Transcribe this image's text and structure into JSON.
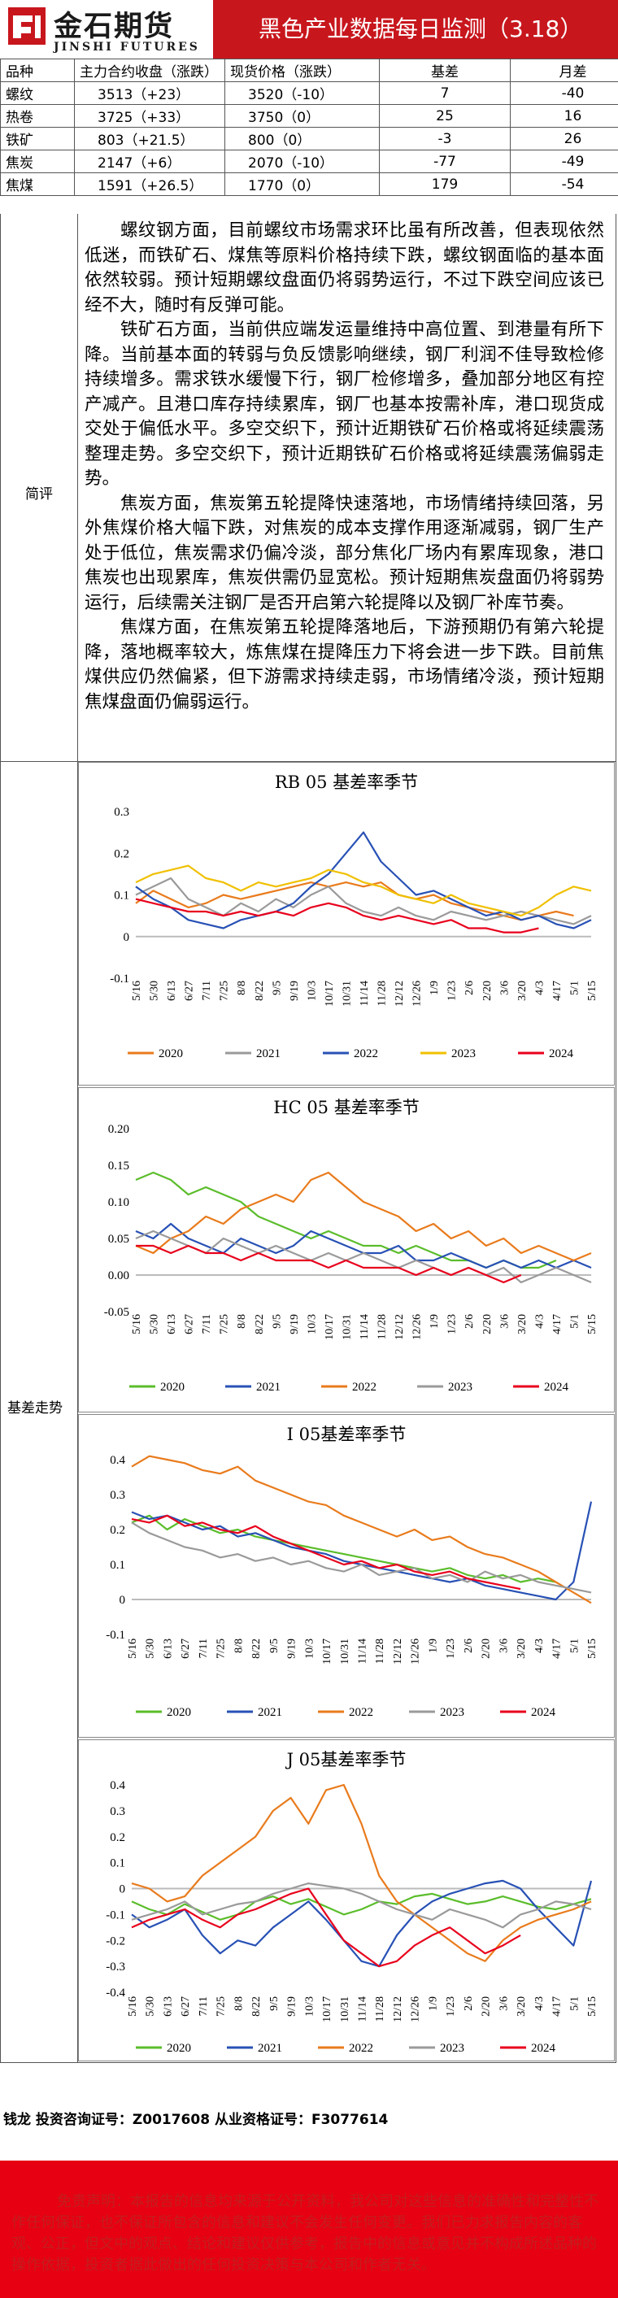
{
  "header": {
    "logo_cn": "金石期货",
    "logo_en": "JINSHI FUTURES",
    "title": "黑色产业数据每日监测（3.18）"
  },
  "table": {
    "headers": [
      "品种",
      "主力合约收盘（涨跌）",
      "现货价格（涨跌）",
      "基差",
      "月差"
    ],
    "rows": [
      [
        "螺纹",
        "3513（+23）",
        "3520（-10）",
        "7",
        "-40"
      ],
      [
        "热卷",
        "3725（+33）",
        "3750（0）",
        "25",
        "16"
      ],
      [
        "铁矿",
        "803（+21.5）",
        "800（0）",
        "-3",
        "26"
      ],
      [
        "焦炭",
        "2147（+6）",
        "2070（-10）",
        "-77",
        "-49"
      ],
      [
        "焦煤",
        "1591（+26.5）",
        "1770（0）",
        "179",
        "-54"
      ]
    ]
  },
  "commentary": {
    "label": "简评",
    "paragraphs": [
      "螺纹钢方面，目前螺纹市场需求环比虽有所改善，但表现依然低迷，而铁矿石、煤焦等原料价格持续下跌，螺纹钢面临的基本面依然较弱。预计短期螺纹盘面仍将弱势运行，不过下跌空间应该已经不大，随时有反弹可能。",
      "铁矿石方面，当前供应端发运量维持中高位置、到港量有所下降。当前基本面的转弱与负反馈影响继续，钢厂利润不佳导致检修持续增多。需求铁水缓慢下行，钢厂检修增多，叠加部分地区有控产减产。且港口库存持续累库，钢厂也基本按需补库，港口现货成交处于偏低水平。多空交织下，预计近期铁矿石价格或将延续震荡整理走势。多空交织下，预计近期铁矿石价格或将延续震荡偏弱走势。",
      "焦炭方面，焦炭第五轮提降快速落地，市场情绪持续回落，另外焦煤价格大幅下跌，对焦炭的成本支撑作用逐渐减弱，钢厂生产处于低位，焦炭需求仍偏冷淡，部分焦化厂场内有累库现象，港口焦炭也出现累库，焦炭供需仍显宽松。预计短期焦炭盘面仍将弱势运行，后续需关注钢厂是否开启第六轮提降以及钢厂补库节奏。",
      "焦煤方面，在焦炭第五轮提降落地后，下游预期仍有第六轮提降，落地概率较大，炼焦煤在提降压力下将会进一步下跌。目前焦煤供应仍然偏紧，但下游需求持续走弱，市场情绪冷淡，预计短期焦煤盘面仍偏弱运行。"
    ]
  },
  "chart_section_label": "基差走势",
  "charts": {
    "rb": {
      "title": "RB 05 基差率季节",
      "y_ticks": [
        "0.3",
        "0.2",
        "0.1",
        "0",
        "-0.1"
      ],
      "x_ticks": [
        "5/16",
        "5/30",
        "6/13",
        "6/27",
        "7/11",
        "7/25",
        "8/8",
        "8/22",
        "9/5",
        "9/19",
        "10/3",
        "10/17",
        "10/31",
        "11/14",
        "11/28",
        "12/12",
        "12/26",
        "1/9",
        "1/23",
        "2/6",
        "2/20",
        "3/6",
        "3/20",
        "4/3",
        "4/17",
        "5/1",
        "5/15"
      ],
      "legend": [
        "2020",
        "2021",
        "2022",
        "2023",
        "2024"
      ]
    },
    "hc": {
      "title": "HC 05 基差率季节",
      "y_ticks": [
        "0.20",
        "0.15",
        "0.10",
        "0.05",
        "0.00",
        "-0.05"
      ],
      "x_ticks": [
        "5/16",
        "5/30",
        "6/13",
        "6/27",
        "7/11",
        "7/25",
        "8/8",
        "8/22",
        "9/5",
        "9/19",
        "10/3",
        "10/17",
        "10/31",
        "11/14",
        "11/28",
        "12/12",
        "12/26",
        "1/9",
        "1/23",
        "2/6",
        "2/20",
        "3/6",
        "3/20",
        "4/3",
        "4/17",
        "5/1",
        "5/15"
      ],
      "legend": [
        "2020",
        "2021",
        "2022",
        "2023",
        "2024"
      ]
    },
    "i": {
      "title": "I 05基差率季节",
      "y_ticks": [
        "0.4",
        "0.3",
        "0.2",
        "0.1",
        "0",
        "-0.1"
      ],
      "x_ticks": [
        "5/16",
        "5/30",
        "6/13",
        "6/27",
        "7/11",
        "7/25",
        "8/8",
        "8/22",
        "9/5",
        "9/19",
        "10/3",
        "10/17",
        "10/31",
        "11/14",
        "11/28",
        "12/12",
        "12/26",
        "1/9",
        "1/23",
        "2/6",
        "2/20",
        "3/6",
        "3/20",
        "4/3",
        "4/17",
        "5/1",
        "5/15"
      ],
      "legend": [
        "2020",
        "2021",
        "2022",
        "2023",
        "2024"
      ]
    },
    "j": {
      "title": "J 05基差率季节",
      "y_ticks": [
        "0.4",
        "0.3",
        "0.2",
        "0.1",
        "0",
        "-0.1",
        "-0.2",
        "-0.3",
        "-0.4"
      ],
      "x_ticks": [
        "5/16",
        "5/30",
        "6/13",
        "6/27",
        "7/11",
        "7/25",
        "8/8",
        "8/22",
        "9/5",
        "9/19",
        "10/3",
        "10/17",
        "10/31",
        "11/14",
        "11/28",
        "12/12",
        "12/26",
        "1/9",
        "1/23",
        "2/6",
        "2/20",
        "3/6",
        "3/20",
        "4/3",
        "4/17",
        "5/1",
        "5/15"
      ],
      "legend": [
        "2020",
        "2021",
        "2022",
        "2023",
        "2024"
      ]
    }
  },
  "chart_data": [
    {
      "type": "line",
      "title": "RB 05 基差率季节",
      "ylim": [
        -0.1,
        0.3
      ],
      "grid": false,
      "legend_position": "bottom",
      "x": [
        "5/16",
        "5/30",
        "6/13",
        "6/27",
        "7/11",
        "7/25",
        "8/8",
        "8/22",
        "9/5",
        "9/19",
        "10/3",
        "10/17",
        "10/31",
        "11/14",
        "11/28",
        "12/12",
        "12/26",
        "1/9",
        "1/23",
        "2/6",
        "2/20",
        "3/6",
        "3/20",
        "4/3",
        "4/17",
        "5/1",
        "5/15"
      ],
      "series": [
        {
          "name": "2020",
          "color": "#e97b1c",
          "values": [
            0.08,
            0.11,
            0.09,
            0.07,
            0.08,
            0.1,
            0.09,
            0.1,
            0.11,
            0.12,
            0.13,
            0.12,
            0.13,
            0.12,
            0.13,
            0.1,
            0.09,
            0.1,
            0.08,
            0.07,
            0.06,
            0.05,
            0.04,
            0.05,
            0.06,
            0.05,
            null
          ]
        },
        {
          "name": "2021",
          "color": "#9a9a9a",
          "values": [
            0.1,
            0.12,
            0.14,
            0.09,
            0.07,
            0.05,
            0.08,
            0.06,
            0.09,
            0.07,
            0.1,
            0.12,
            0.08,
            0.06,
            0.05,
            0.07,
            0.05,
            0.04,
            0.06,
            0.05,
            0.04,
            0.05,
            0.06,
            0.05,
            0.04,
            0.03,
            0.05
          ]
        },
        {
          "name": "2022",
          "color": "#2851b5",
          "values": [
            0.12,
            0.09,
            0.07,
            0.04,
            0.03,
            0.02,
            0.04,
            0.05,
            0.06,
            0.08,
            0.12,
            0.15,
            0.2,
            0.25,
            0.18,
            0.14,
            0.1,
            0.11,
            0.09,
            0.07,
            0.05,
            0.06,
            0.04,
            0.05,
            0.03,
            0.02,
            0.04
          ]
        },
        {
          "name": "2023",
          "color": "#f0c000",
          "values": [
            0.13,
            0.15,
            0.16,
            0.17,
            0.14,
            0.13,
            0.11,
            0.13,
            0.12,
            0.13,
            0.14,
            0.16,
            0.15,
            0.13,
            0.12,
            0.1,
            0.09,
            0.08,
            0.1,
            0.08,
            0.07,
            0.06,
            0.05,
            0.07,
            0.1,
            0.12,
            0.11
          ]
        },
        {
          "name": "2024",
          "color": "#e8001c",
          "values": [
            0.09,
            0.08,
            0.07,
            0.06,
            0.06,
            0.05,
            0.06,
            0.05,
            0.06,
            0.05,
            0.07,
            0.08,
            0.07,
            0.05,
            0.04,
            0.05,
            0.04,
            0.03,
            0.04,
            0.02,
            0.02,
            0.01,
            0.01,
            0.02,
            null,
            null,
            null
          ]
        }
      ]
    },
    {
      "type": "line",
      "title": "HC 05 基差率季节",
      "ylim": [
        -0.05,
        0.2
      ],
      "grid": false,
      "legend_position": "bottom",
      "x": [
        "5/16",
        "5/30",
        "6/13",
        "6/27",
        "7/11",
        "7/25",
        "8/8",
        "8/22",
        "9/5",
        "9/19",
        "10/3",
        "10/17",
        "10/31",
        "11/14",
        "11/28",
        "12/12",
        "12/26",
        "1/9",
        "1/23",
        "2/6",
        "2/20",
        "3/6",
        "3/20",
        "4/3",
        "4/17",
        "5/1",
        "5/15"
      ],
      "series": [
        {
          "name": "2020",
          "color": "#5bbd2b",
          "values": [
            0.13,
            0.14,
            0.13,
            0.11,
            0.12,
            0.11,
            0.1,
            0.08,
            0.07,
            0.06,
            0.05,
            0.06,
            0.05,
            0.04,
            0.04,
            0.03,
            0.04,
            0.03,
            0.02,
            0.02,
            0.01,
            0.02,
            0.01,
            0.01,
            0.02,
            null,
            null
          ]
        },
        {
          "name": "2021",
          "color": "#2851b5",
          "values": [
            0.06,
            0.05,
            0.07,
            0.05,
            0.04,
            0.03,
            0.05,
            0.04,
            0.03,
            0.04,
            0.06,
            0.05,
            0.04,
            0.03,
            0.03,
            0.04,
            0.02,
            0.02,
            0.03,
            0.02,
            0.01,
            0.02,
            0.01,
            0.02,
            0.01,
            0.02,
            0.01
          ]
        },
        {
          "name": "2022",
          "color": "#e97b1c",
          "values": [
            0.04,
            0.03,
            0.05,
            0.06,
            0.08,
            0.07,
            0.09,
            0.1,
            0.11,
            0.1,
            0.13,
            0.14,
            0.12,
            0.1,
            0.09,
            0.08,
            0.06,
            0.07,
            0.05,
            0.06,
            0.04,
            0.05,
            0.03,
            0.04,
            0.03,
            0.02,
            0.03
          ]
        },
        {
          "name": "2023",
          "color": "#9a9a9a",
          "values": [
            0.05,
            0.06,
            0.05,
            0.04,
            0.03,
            0.05,
            0.04,
            0.03,
            0.04,
            0.03,
            0.02,
            0.03,
            0.02,
            0.03,
            0.02,
            0.01,
            0.02,
            0.01,
            0.0,
            0.01,
            0.0,
            0.01,
            -0.01,
            0.0,
            0.01,
            0.0,
            -0.01
          ]
        },
        {
          "name": "2024",
          "color": "#e8001c",
          "values": [
            0.04,
            0.04,
            0.03,
            0.04,
            0.03,
            0.03,
            0.02,
            0.03,
            0.02,
            0.02,
            0.02,
            0.01,
            0.02,
            0.01,
            0.01,
            0.01,
            0.0,
            0.01,
            0.0,
            0.01,
            0.0,
            -0.01,
            0.0,
            null,
            null,
            null,
            null
          ]
        }
      ]
    },
    {
      "type": "line",
      "title": "I 05基差率季节",
      "ylim": [
        -0.1,
        0.4
      ],
      "grid": false,
      "legend_position": "bottom",
      "x": [
        "5/16",
        "5/30",
        "6/13",
        "6/27",
        "7/11",
        "7/25",
        "8/8",
        "8/22",
        "9/5",
        "9/19",
        "10/3",
        "10/17",
        "10/31",
        "11/14",
        "11/28",
        "12/12",
        "12/26",
        "1/9",
        "1/23",
        "2/6",
        "2/20",
        "3/6",
        "3/20",
        "4/3",
        "4/17",
        "5/1",
        "5/15"
      ],
      "series": [
        {
          "name": "2020",
          "color": "#5bbd2b",
          "values": [
            0.22,
            0.24,
            0.2,
            0.23,
            0.21,
            0.19,
            0.2,
            0.18,
            0.17,
            0.16,
            0.15,
            0.14,
            0.13,
            0.12,
            0.11,
            0.1,
            0.09,
            0.08,
            0.09,
            0.07,
            0.06,
            0.07,
            0.05,
            0.06,
            0.05,
            null,
            null
          ]
        },
        {
          "name": "2021",
          "color": "#2851b5",
          "values": [
            0.25,
            0.23,
            0.24,
            0.22,
            0.2,
            0.21,
            0.18,
            0.19,
            0.17,
            0.15,
            0.14,
            0.13,
            0.11,
            0.1,
            0.09,
            0.08,
            0.07,
            0.06,
            0.05,
            0.06,
            0.04,
            0.03,
            0.02,
            0.01,
            0.0,
            0.05,
            0.28
          ]
        },
        {
          "name": "2022",
          "color": "#e97b1c",
          "values": [
            0.38,
            0.41,
            0.4,
            0.39,
            0.37,
            0.36,
            0.38,
            0.34,
            0.32,
            0.3,
            0.28,
            0.27,
            0.24,
            0.22,
            0.2,
            0.18,
            0.2,
            0.17,
            0.18,
            0.15,
            0.13,
            0.12,
            0.1,
            0.08,
            0.05,
            0.02,
            -0.01
          ]
        },
        {
          "name": "2023",
          "color": "#9a9a9a",
          "values": [
            0.22,
            0.19,
            0.17,
            0.15,
            0.14,
            0.12,
            0.13,
            0.11,
            0.12,
            0.1,
            0.11,
            0.09,
            0.08,
            0.1,
            0.07,
            0.08,
            0.09,
            0.06,
            0.07,
            0.05,
            0.08,
            0.06,
            0.07,
            0.05,
            0.04,
            0.03,
            0.02
          ]
        },
        {
          "name": "2024",
          "color": "#e8001c",
          "values": [
            0.23,
            0.22,
            0.24,
            0.21,
            0.22,
            0.2,
            0.19,
            0.21,
            0.18,
            0.16,
            0.14,
            0.12,
            0.1,
            0.11,
            0.09,
            0.1,
            0.08,
            0.07,
            0.08,
            0.06,
            0.05,
            0.04,
            0.03,
            null,
            null,
            null,
            null
          ]
        }
      ]
    },
    {
      "type": "line",
      "title": "J 05基差率季节",
      "ylim": [
        -0.4,
        0.4
      ],
      "grid": false,
      "legend_position": "bottom",
      "x": [
        "5/16",
        "5/30",
        "6/13",
        "6/27",
        "7/11",
        "7/25",
        "8/8",
        "8/22",
        "9/5",
        "9/19",
        "10/3",
        "10/17",
        "10/31",
        "11/14",
        "11/28",
        "12/12",
        "12/26",
        "1/9",
        "1/23",
        "2/6",
        "2/20",
        "3/6",
        "3/20",
        "4/3",
        "4/17",
        "5/1",
        "5/15"
      ],
      "series": [
        {
          "name": "2020",
          "color": "#5bbd2b",
          "values": [
            -0.05,
            -0.08,
            -0.1,
            -0.06,
            -0.09,
            -0.12,
            -0.1,
            -0.05,
            -0.03,
            -0.06,
            -0.04,
            -0.07,
            -0.1,
            -0.08,
            -0.05,
            -0.06,
            -0.03,
            -0.02,
            -0.04,
            -0.06,
            -0.05,
            -0.03,
            -0.05,
            -0.07,
            -0.08,
            -0.06,
            -0.04
          ]
        },
        {
          "name": "2021",
          "color": "#2851b5",
          "values": [
            -0.1,
            -0.15,
            -0.12,
            -0.08,
            -0.18,
            -0.25,
            -0.2,
            -0.22,
            -0.15,
            -0.1,
            -0.05,
            -0.12,
            -0.2,
            -0.28,
            -0.3,
            -0.18,
            -0.1,
            -0.05,
            -0.02,
            0.0,
            0.02,
            0.03,
            0.0,
            -0.08,
            -0.15,
            -0.22,
            0.03
          ]
        },
        {
          "name": "2022",
          "color": "#e97b1c",
          "values": [
            0.02,
            0.0,
            -0.05,
            -0.03,
            0.05,
            0.1,
            0.15,
            0.2,
            0.3,
            0.35,
            0.25,
            0.38,
            0.4,
            0.25,
            0.05,
            -0.05,
            -0.1,
            -0.15,
            -0.2,
            -0.25,
            -0.28,
            -0.2,
            -0.15,
            -0.12,
            -0.1,
            -0.08,
            -0.05
          ]
        },
        {
          "name": "2023",
          "color": "#9a9a9a",
          "values": [
            -0.12,
            -0.1,
            -0.08,
            -0.05,
            -0.1,
            -0.08,
            -0.06,
            -0.05,
            -0.02,
            0.0,
            0.02,
            0.01,
            0.0,
            -0.02,
            -0.05,
            -0.08,
            -0.1,
            -0.12,
            -0.08,
            -0.1,
            -0.12,
            -0.15,
            -0.1,
            -0.08,
            -0.05,
            -0.06,
            -0.08
          ]
        },
        {
          "name": "2024",
          "color": "#e8001c",
          "values": [
            -0.15,
            -0.12,
            -0.1,
            -0.08,
            -0.12,
            -0.15,
            -0.1,
            -0.08,
            -0.05,
            -0.02,
            0.0,
            -0.1,
            -0.2,
            -0.25,
            -0.3,
            -0.28,
            -0.22,
            -0.18,
            -0.15,
            -0.2,
            -0.25,
            -0.22,
            -0.18,
            null,
            null,
            null,
            null
          ]
        }
      ]
    }
  ],
  "footer": {
    "analyst": "钱龙  投资咨询证号：Z0017608  从业资格证号：F3077614",
    "disclaimer": "免责声明：本报告的信息均来源于公开资料，我公司对这些信息的准确性和完整性不作任何保证，也不保证所包含的信息和建议不会发生任何变更。我们已力求报告内容的客观、公正，但文中的观点、结论和建议仅供参考，报告中的信息或意见并不构成所述品种的操作依据，投资者据此做出的任何投资决策与本公司和作者无关。"
  }
}
